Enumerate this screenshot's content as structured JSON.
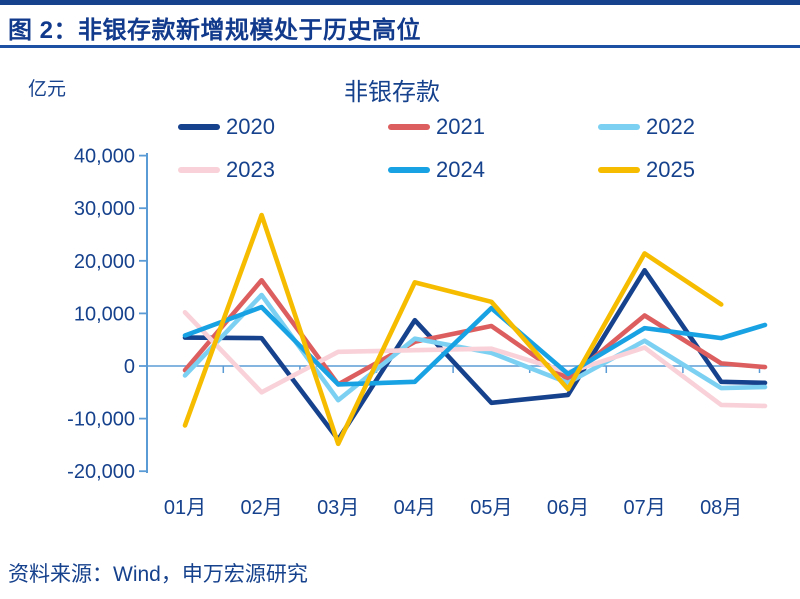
{
  "header": {
    "title": "图 2：非银存款新增规模处于历史高位"
  },
  "footer": {
    "source": "资料来源：Wind，申万宏源研究"
  },
  "chart_data": {
    "type": "line",
    "title": "非银存款",
    "unit_label": "亿元",
    "categories": [
      "01月",
      "02月",
      "03月",
      "04月",
      "05月",
      "06月",
      "07月",
      "08月"
    ],
    "ylim": [
      -20000,
      40000
    ],
    "ytick_step": 10000,
    "ytick_labels": [
      "40,000",
      "30,000",
      "20,000",
      "10,000",
      "0",
      "-10,000",
      "-20,000"
    ],
    "ytick_values": [
      40000,
      30000,
      20000,
      10000,
      0,
      -10000,
      -20000
    ],
    "grid": "zero-line-only",
    "legend_position": "top",
    "axis_color": "#5B9BD5",
    "text_color": "#16418C",
    "series": [
      {
        "name": "2020",
        "color": "#16418C",
        "values": [
          5400,
          5300,
          -14000,
          8700,
          -7000,
          -5500,
          18200,
          -3000
        ],
        "clipped_edge_value": -3200
      },
      {
        "name": "2021",
        "color": "#DD5E5E",
        "values": [
          -800,
          16300,
          -3500,
          4600,
          7600,
          -2500,
          9600,
          500
        ],
        "clipped_edge_value": -200
      },
      {
        "name": "2022",
        "color": "#7CD1F2",
        "values": [
          -1800,
          13500,
          -6500,
          5200,
          2500,
          -3200,
          4800,
          -4200
        ],
        "clipped_edge_value": -4000
      },
      {
        "name": "2023",
        "color": "#F8D2D8",
        "values": [
          10200,
          -5000,
          2700,
          3000,
          3300,
          -1200,
          3500,
          -7400
        ],
        "clipped_edge_value": -7600
      },
      {
        "name": "2024",
        "color": "#18A2E3",
        "values": [
          5800,
          11200,
          -3500,
          -3000,
          11000,
          -1500,
          7200,
          5300
        ],
        "clipped_edge_value": 7800
      },
      {
        "name": "2025",
        "color": "#F5BC00",
        "values": [
          -11300,
          28700,
          -14800,
          15900,
          12200,
          -4400,
          21400,
          11700
        ],
        "clipped_edge_value": null
      }
    ]
  }
}
